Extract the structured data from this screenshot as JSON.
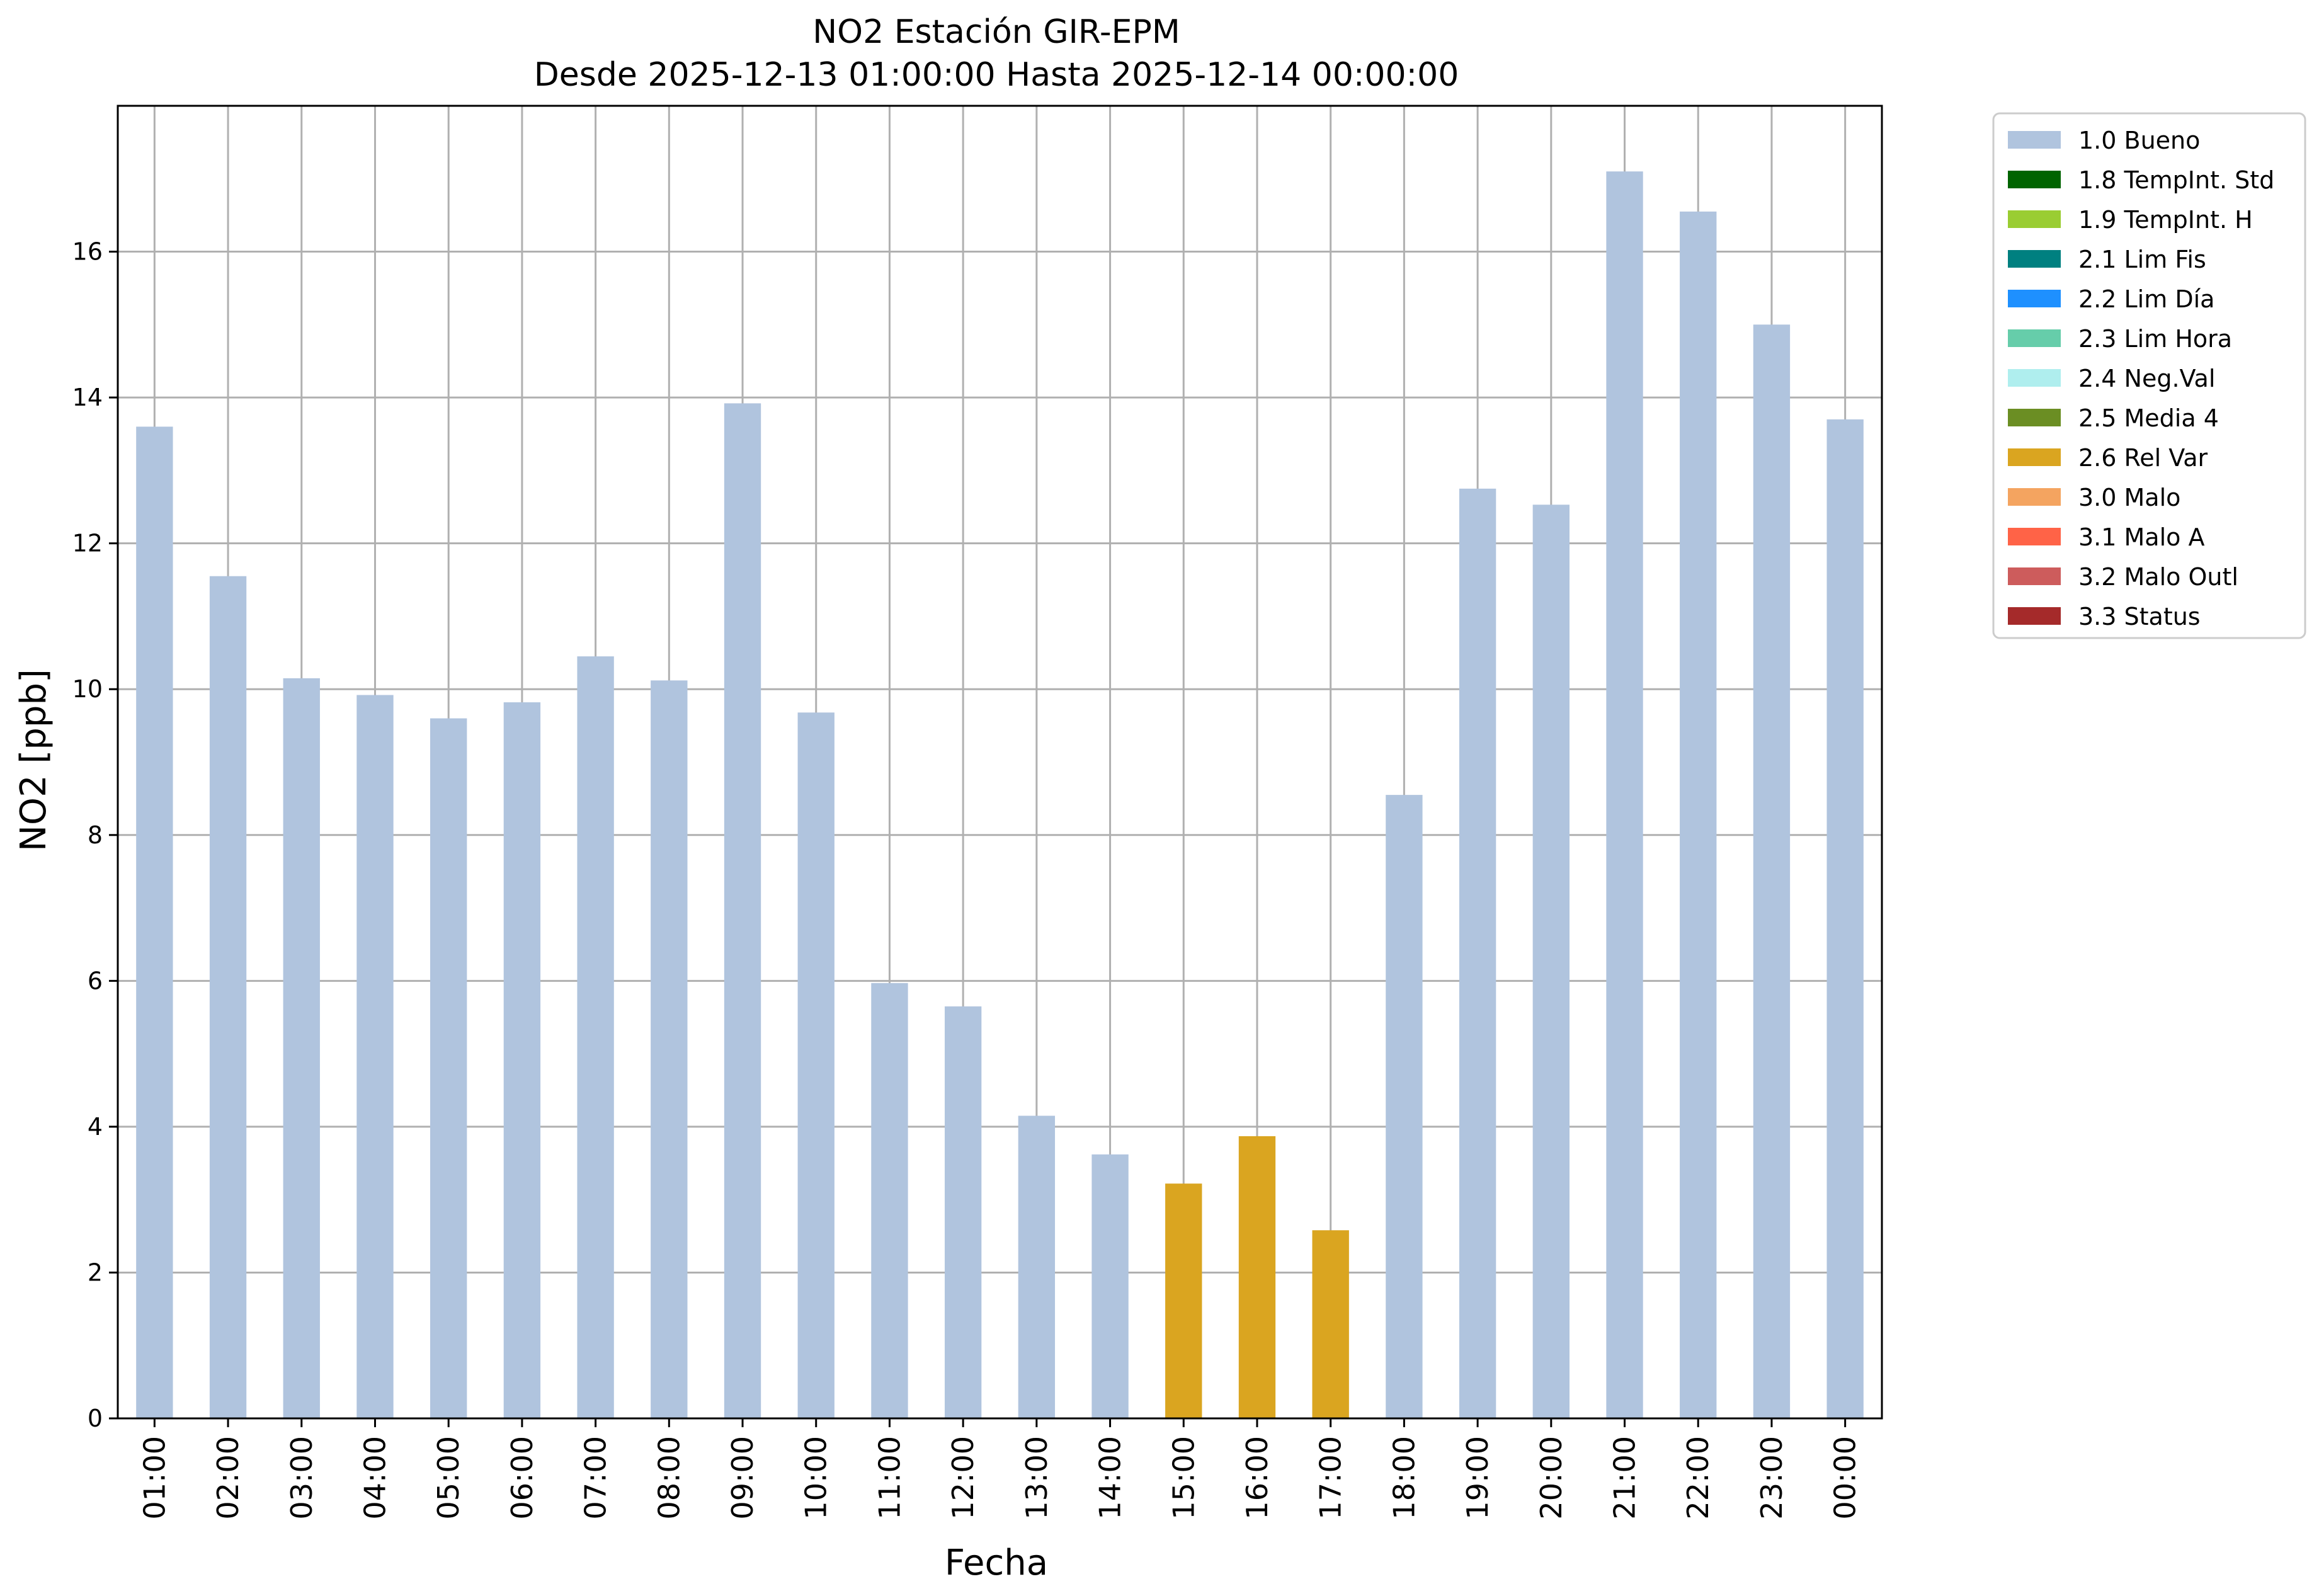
{
  "chart_data": {
    "type": "bar",
    "title": "NO2 Estación GIR-EPM",
    "subtitle": "Desde 2025-12-13 01:00:00 Hasta 2025-12-14 00:00:00",
    "xlabel": "Fecha",
    "ylabel": "NO2 [ppb]",
    "ylim": [
      0,
      18
    ],
    "yticks": [
      0,
      2,
      4,
      6,
      8,
      10,
      12,
      14,
      16
    ],
    "grid": true,
    "legend_position": "outside-top-right",
    "categories": [
      "01:00",
      "02:00",
      "03:00",
      "04:00",
      "05:00",
      "06:00",
      "07:00",
      "08:00",
      "09:00",
      "10:00",
      "11:00",
      "12:00",
      "13:00",
      "14:00",
      "15:00",
      "16:00",
      "17:00",
      "18:00",
      "19:00",
      "20:00",
      "21:00",
      "22:00",
      "23:00",
      "00:00"
    ],
    "values": [
      13.6,
      11.55,
      10.15,
      9.92,
      9.6,
      9.82,
      10.45,
      10.12,
      13.92,
      9.68,
      5.97,
      5.65,
      4.15,
      3.62,
      3.22,
      3.87,
      2.58,
      8.55,
      12.75,
      12.53,
      17.1,
      16.55,
      15.0,
      13.7
    ],
    "flags": [
      "1.0 Bueno",
      "1.0 Bueno",
      "1.0 Bueno",
      "1.0 Bueno",
      "1.0 Bueno",
      "1.0 Bueno",
      "1.0 Bueno",
      "1.0 Bueno",
      "1.0 Bueno",
      "1.0 Bueno",
      "1.0 Bueno",
      "1.0 Bueno",
      "1.0 Bueno",
      "1.0 Bueno",
      "2.6 Rel Var",
      "2.6 Rel Var",
      "2.6 Rel Var",
      "1.0 Bueno",
      "1.0 Bueno",
      "1.0 Bueno",
      "1.0 Bueno",
      "1.0 Bueno",
      "1.0 Bueno",
      "1.0 Bueno"
    ],
    "legend": [
      {
        "label": "1.0 Bueno",
        "color": "#b0c4de"
      },
      {
        "label": "1.8 TempInt. Std",
        "color": "#006400"
      },
      {
        "label": "1.9 TempInt. H",
        "color": "#9acd32"
      },
      {
        "label": "2.1 Lim Fis",
        "color": "#008080"
      },
      {
        "label": "2.2 Lim Día",
        "color": "#1e90ff"
      },
      {
        "label": "2.3 Lim Hora",
        "color": "#66cdaa"
      },
      {
        "label": "2.4 Neg.Val",
        "color": "#afeeee"
      },
      {
        "label": "2.5 Media 4",
        "color": "#6b8e23"
      },
      {
        "label": "2.6 Rel Var",
        "color": "#daa520"
      },
      {
        "label": "3.0 Malo",
        "color": "#f4a460"
      },
      {
        "label": "3.1 Malo A",
        "color": "#ff6347"
      },
      {
        "label": "3.2 Malo Outl",
        "color": "#cd5c5c"
      },
      {
        "label": "3.3 Status",
        "color": "#a52a2a"
      }
    ]
  }
}
